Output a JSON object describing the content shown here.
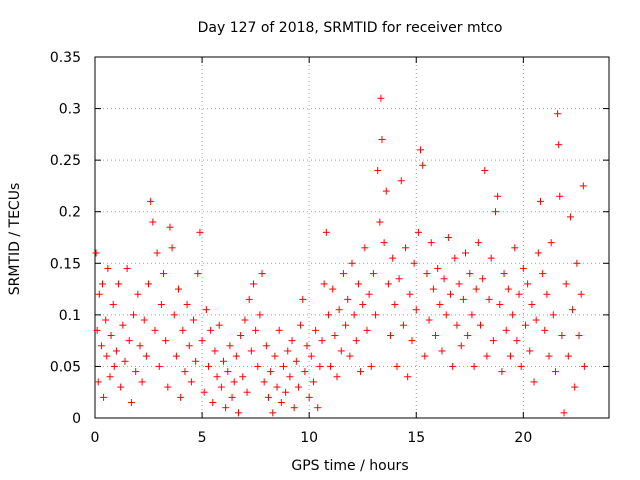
{
  "chart_data": {
    "type": "scatter",
    "title": "Day 127 of 2018, SRMTID for receiver mtco",
    "xlabel": "GPS time / hours",
    "ylabel": "SRMTID / TECUs",
    "xlim": [
      0,
      24
    ],
    "ylim": [
      0,
      0.35
    ],
    "xticks": [
      0,
      5,
      10,
      15,
      20
    ],
    "xtick_labels": [
      "0",
      "5",
      "10",
      "15",
      "20"
    ],
    "yticks": [
      0,
      0.05,
      0.1,
      0.15,
      0.2,
      0.25,
      0.3,
      0.35
    ],
    "ytick_labels": [
      "0",
      "0.05",
      "0.1",
      "0.15",
      "0.2",
      "0.25",
      "0.3",
      "0.35"
    ],
    "grid": true,
    "marker": "+",
    "color": "#ff0000",
    "series": [
      {
        "name": "SRMTID",
        "points": [
          [
            0.05,
            0.16
          ],
          [
            0.1,
            0.085
          ],
          [
            0.15,
            0.035
          ],
          [
            0.2,
            0.12
          ],
          [
            0.3,
            0.07
          ],
          [
            0.35,
            0.13
          ],
          [
            0.4,
            0.02
          ],
          [
            0.5,
            0.095
          ],
          [
            0.55,
            0.06
          ],
          [
            0.6,
            0.145
          ],
          [
            0.7,
            0.04
          ],
          [
            0.75,
            0.08
          ],
          [
            0.85,
            0.11
          ],
          [
            0.9,
            0.05
          ],
          [
            1.0,
            0.065
          ],
          [
            1.1,
            0.13
          ],
          [
            1.2,
            0.03
          ],
          [
            1.3,
            0.09
          ],
          [
            1.4,
            0.055
          ],
          [
            1.5,
            0.145
          ],
          [
            1.6,
            0.075
          ],
          [
            1.7,
            0.015
          ],
          [
            1.8,
            0.1
          ],
          [
            1.9,
            0.045
          ],
          [
            2.0,
            0.12
          ],
          [
            2.1,
            0.07
          ],
          [
            2.2,
            0.035
          ],
          [
            2.3,
            0.095
          ],
          [
            2.4,
            0.06
          ],
          [
            2.5,
            0.13
          ],
          [
            2.6,
            0.21
          ],
          [
            2.7,
            0.19
          ],
          [
            2.8,
            0.085
          ],
          [
            2.9,
            0.16
          ],
          [
            3.0,
            0.05
          ],
          [
            3.1,
            0.11
          ],
          [
            3.2,
            0.14
          ],
          [
            3.3,
            0.075
          ],
          [
            3.4,
            0.03
          ],
          [
            3.5,
            0.185
          ],
          [
            3.6,
            0.165
          ],
          [
            3.7,
            0.1
          ],
          [
            3.8,
            0.06
          ],
          [
            3.9,
            0.125
          ],
          [
            4.0,
            0.02
          ],
          [
            4.1,
            0.085
          ],
          [
            4.2,
            0.045
          ],
          [
            4.3,
            0.11
          ],
          [
            4.4,
            0.07
          ],
          [
            4.5,
            0.035
          ],
          [
            4.6,
            0.095
          ],
          [
            4.7,
            0.055
          ],
          [
            4.8,
            0.14
          ],
          [
            4.9,
            0.18
          ],
          [
            5.0,
            0.075
          ],
          [
            5.1,
            0.025
          ],
          [
            5.2,
            0.105
          ],
          [
            5.3,
            0.05
          ],
          [
            5.4,
            0.085
          ],
          [
            5.5,
            0.015
          ],
          [
            5.6,
            0.065
          ],
          [
            5.7,
            0.04
          ],
          [
            5.8,
            0.09
          ],
          [
            5.9,
            0.03
          ],
          [
            6.0,
            0.055
          ],
          [
            6.1,
            0.01
          ],
          [
            6.2,
            0.045
          ],
          [
            6.3,
            0.07
          ],
          [
            6.4,
            0.02
          ],
          [
            6.5,
            0.035
          ],
          [
            6.6,
            0.06
          ],
          [
            6.7,
            0.005
          ],
          [
            6.8,
            0.08
          ],
          [
            6.9,
            0.04
          ],
          [
            7.0,
            0.095
          ],
          [
            7.1,
            0.025
          ],
          [
            7.2,
            0.115
          ],
          [
            7.3,
            0.065
          ],
          [
            7.4,
            0.13
          ],
          [
            7.5,
            0.085
          ],
          [
            7.6,
            0.05
          ],
          [
            7.7,
            0.1
          ],
          [
            7.8,
            0.14
          ],
          [
            7.9,
            0.035
          ],
          [
            8.0,
            0.07
          ],
          [
            8.1,
            0.02
          ],
          [
            8.2,
            0.045
          ],
          [
            8.3,
            0.005
          ],
          [
            8.4,
            0.06
          ],
          [
            8.5,
            0.03
          ],
          [
            8.6,
            0.085
          ],
          [
            8.7,
            0.015
          ],
          [
            8.8,
            0.05
          ],
          [
            8.9,
            0.025
          ],
          [
            9.0,
            0.065
          ],
          [
            9.1,
            0.04
          ],
          [
            9.2,
            0.075
          ],
          [
            9.3,
            0.01
          ],
          [
            9.4,
            0.055
          ],
          [
            9.5,
            0.03
          ],
          [
            9.6,
            0.09
          ],
          [
            9.7,
            0.115
          ],
          [
            9.8,
            0.045
          ],
          [
            9.9,
            0.07
          ],
          [
            10.0,
            0.02
          ],
          [
            10.1,
            0.06
          ],
          [
            10.2,
            0.035
          ],
          [
            10.3,
            0.085
          ],
          [
            10.4,
            0.01
          ],
          [
            10.5,
            0.05
          ],
          [
            10.6,
            0.075
          ],
          [
            10.7,
            0.13
          ],
          [
            10.8,
            0.18
          ],
          [
            10.9,
            0.1
          ],
          [
            11.0,
            0.05
          ],
          [
            11.1,
            0.125
          ],
          [
            11.2,
            0.08
          ],
          [
            11.3,
            0.04
          ],
          [
            11.4,
            0.105
          ],
          [
            11.5,
            0.065
          ],
          [
            11.6,
            0.14
          ],
          [
            11.7,
            0.09
          ],
          [
            11.8,
            0.115
          ],
          [
            11.9,
            0.06
          ],
          [
            12.0,
            0.15
          ],
          [
            12.1,
            0.1
          ],
          [
            12.2,
            0.075
          ],
          [
            12.3,
            0.13
          ],
          [
            12.4,
            0.045
          ],
          [
            12.5,
            0.11
          ],
          [
            12.6,
            0.165
          ],
          [
            12.7,
            0.085
          ],
          [
            12.8,
            0.12
          ],
          [
            12.9,
            0.05
          ],
          [
            13.0,
            0.14
          ],
          [
            13.1,
            0.1
          ],
          [
            13.2,
            0.24
          ],
          [
            13.3,
            0.19
          ],
          [
            13.35,
            0.31
          ],
          [
            13.4,
            0.27
          ],
          [
            13.5,
            0.17
          ],
          [
            13.6,
            0.22
          ],
          [
            13.7,
            0.13
          ],
          [
            13.8,
            0.08
          ],
          [
            13.9,
            0.155
          ],
          [
            14.0,
            0.11
          ],
          [
            14.1,
            0.05
          ],
          [
            14.2,
            0.135
          ],
          [
            14.3,
            0.23
          ],
          [
            14.4,
            0.09
          ],
          [
            14.5,
            0.165
          ],
          [
            14.6,
            0.04
          ],
          [
            14.7,
            0.12
          ],
          [
            14.8,
            0.075
          ],
          [
            14.9,
            0.15
          ],
          [
            15.0,
            0.105
          ],
          [
            15.1,
            0.18
          ],
          [
            15.2,
            0.26
          ],
          [
            15.3,
            0.245
          ],
          [
            15.4,
            0.06
          ],
          [
            15.5,
            0.14
          ],
          [
            15.6,
            0.095
          ],
          [
            15.7,
            0.17
          ],
          [
            15.8,
            0.125
          ],
          [
            15.9,
            0.08
          ],
          [
            16.0,
            0.145
          ],
          [
            16.1,
            0.11
          ],
          [
            16.2,
            0.065
          ],
          [
            16.3,
            0.135
          ],
          [
            16.4,
            0.1
          ],
          [
            16.5,
            0.175
          ],
          [
            16.6,
            0.12
          ],
          [
            16.7,
            0.05
          ],
          [
            16.8,
            0.155
          ],
          [
            16.9,
            0.09
          ],
          [
            17.0,
            0.13
          ],
          [
            17.1,
            0.07
          ],
          [
            17.2,
            0.115
          ],
          [
            17.3,
            0.16
          ],
          [
            17.4,
            0.08
          ],
          [
            17.5,
            0.14
          ],
          [
            17.6,
            0.1
          ],
          [
            17.7,
            0.05
          ],
          [
            17.8,
            0.125
          ],
          [
            17.9,
            0.17
          ],
          [
            18.0,
            0.09
          ],
          [
            18.1,
            0.135
          ],
          [
            18.2,
            0.24
          ],
          [
            18.3,
            0.06
          ],
          [
            18.4,
            0.115
          ],
          [
            18.5,
            0.155
          ],
          [
            18.6,
            0.075
          ],
          [
            18.7,
            0.2
          ],
          [
            18.8,
            0.215
          ],
          [
            18.9,
            0.11
          ],
          [
            19.0,
            0.045
          ],
          [
            19.1,
            0.14
          ],
          [
            19.2,
            0.085
          ],
          [
            19.3,
            0.125
          ],
          [
            19.4,
            0.06
          ],
          [
            19.5,
            0.1
          ],
          [
            19.6,
            0.165
          ],
          [
            19.7,
            0.075
          ],
          [
            19.8,
            0.12
          ],
          [
            19.9,
            0.05
          ],
          [
            20.0,
            0.145
          ],
          [
            20.1,
            0.09
          ],
          [
            20.2,
            0.13
          ],
          [
            20.3,
            0.065
          ],
          [
            20.4,
            0.11
          ],
          [
            20.5,
            0.035
          ],
          [
            20.6,
            0.095
          ],
          [
            20.7,
            0.16
          ],
          [
            20.8,
            0.21
          ],
          [
            20.9,
            0.14
          ],
          [
            21.0,
            0.085
          ],
          [
            21.1,
            0.12
          ],
          [
            21.2,
            0.06
          ],
          [
            21.3,
            0.17
          ],
          [
            21.4,
            0.1
          ],
          [
            21.5,
            0.045
          ],
          [
            21.6,
            0.295
          ],
          [
            21.65,
            0.265
          ],
          [
            21.7,
            0.215
          ],
          [
            21.8,
            0.08
          ],
          [
            21.9,
            0.005
          ],
          [
            22.0,
            0.13
          ],
          [
            22.1,
            0.06
          ],
          [
            22.2,
            0.195
          ],
          [
            22.3,
            0.105
          ],
          [
            22.4,
            0.03
          ],
          [
            22.5,
            0.15
          ],
          [
            22.6,
            0.08
          ],
          [
            22.7,
            0.12
          ],
          [
            22.8,
            0.225
          ],
          [
            22.85,
            0.05
          ]
        ]
      }
    ]
  }
}
